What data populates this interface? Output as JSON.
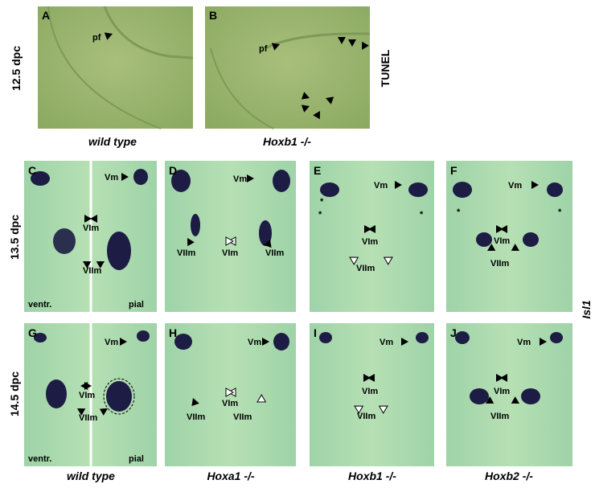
{
  "rows": [
    {
      "label": "12.5 dpc"
    },
    {
      "label": "13.5 dpc"
    },
    {
      "label": "14.5 dpc"
    }
  ],
  "side_labels": {
    "tunel": "TUNEL",
    "isl1": "Isl1"
  },
  "panels": [
    {
      "letter": "A",
      "annotations": [
        "pf"
      ]
    },
    {
      "letter": "B",
      "annotations": [
        "pf"
      ]
    },
    {
      "letter": "C",
      "annotations": [
        "Vm",
        "VIm",
        "VIIm",
        "ventr.",
        "pial"
      ]
    },
    {
      "letter": "D",
      "annotations": [
        "Vm",
        "VIm",
        "VIIm",
        "VIIm"
      ]
    },
    {
      "letter": "E",
      "annotations": [
        "Vm",
        "*",
        "*",
        "*",
        "VIm",
        "VIIm"
      ]
    },
    {
      "letter": "F",
      "annotations": [
        "Vm",
        "*",
        "*",
        "VIm",
        "VIIm"
      ]
    },
    {
      "letter": "G",
      "annotations": [
        "Vm",
        "VIm",
        "VIIm",
        "ventr.",
        "pial"
      ]
    },
    {
      "letter": "H",
      "annotations": [
        "Vm",
        "VIm",
        "VIIm",
        "VIIm"
      ]
    },
    {
      "letter": "I",
      "annotations": [
        "Vm",
        "VIm",
        "VIIm"
      ]
    },
    {
      "letter": "J",
      "annotations": [
        "Vm",
        "VIm",
        "VIIm"
      ]
    }
  ],
  "genotypes_top": [
    "wild type",
    "Hoxb1 -/-"
  ],
  "genotypes_bottom": [
    "wild type",
    "Hoxa1 -/-",
    "Hoxb1 -/-",
    "Hoxb2 -/-"
  ]
}
